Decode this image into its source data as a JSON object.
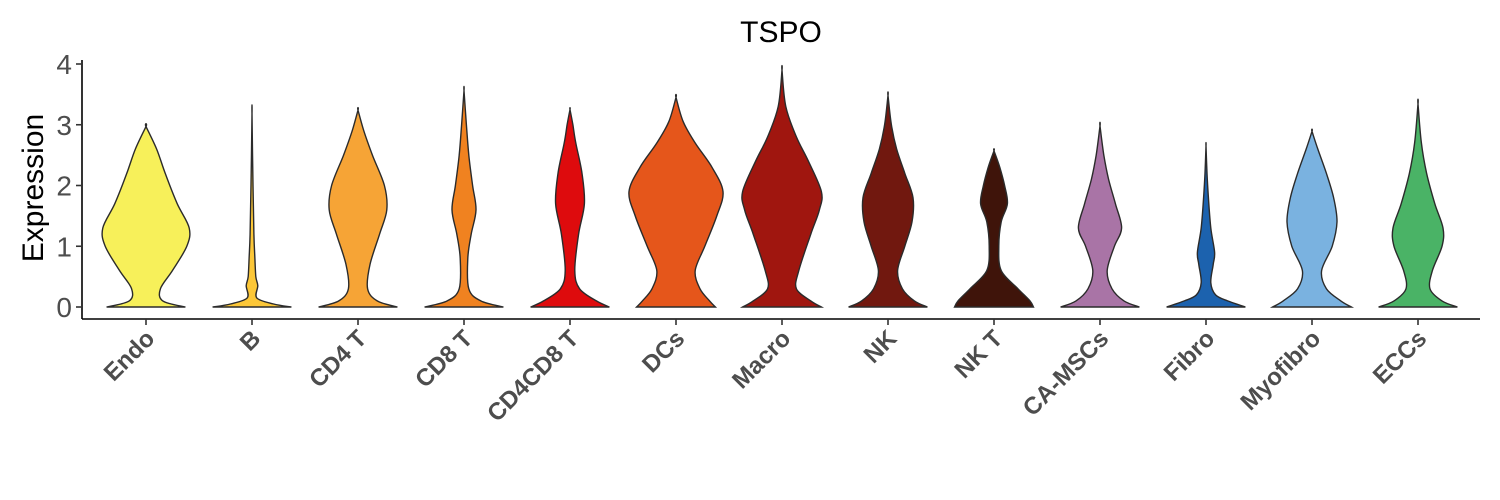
{
  "chart_data": {
    "type": "violin",
    "title": "TSPO",
    "ylabel": "Expression",
    "xlabel": "",
    "ylim": [
      -0.2,
      4.05
    ],
    "yticks": [
      0,
      1,
      2,
      3,
      4
    ],
    "grid": false,
    "legend": "none",
    "categories": [
      "Endo",
      "B",
      "CD4 T",
      "CD8 T",
      "CD4CD8 T",
      "DCs",
      "Macro",
      "NK",
      "NK T",
      "CA-MSCs",
      "Fibro",
      "Myofibro",
      "ECCs"
    ],
    "colors": [
      "#F7F05A",
      "#FCC738",
      "#F6A436",
      "#F08220",
      "#DE0B0D",
      "#E5561B",
      "#A0160F",
      "#71180F",
      "#3F140A",
      "#A974A6",
      "#1C62AE",
      "#7AB2E0",
      "#4AB366"
    ],
    "max_values": [
      2.97,
      3.18,
      3.24,
      3.56,
      3.25,
      3.45,
      3.9,
      3.48,
      2.57,
      2.98,
      2.65,
      2.89,
      3.34
    ],
    "violins": [
      {
        "name": "Endo",
        "density": [
          [
            0,
            0.82
          ],
          [
            0.1,
            0.35
          ],
          [
            0.3,
            0.3
          ],
          [
            0.6,
            0.55
          ],
          [
            1.0,
            0.85
          ],
          [
            1.3,
            0.9
          ],
          [
            1.7,
            0.65
          ],
          [
            2.2,
            0.4
          ],
          [
            2.6,
            0.22
          ],
          [
            2.97,
            0
          ]
        ]
      },
      {
        "name": "B",
        "density": [
          [
            0,
            0.82
          ],
          [
            0.05,
            0.45
          ],
          [
            0.15,
            0.1
          ],
          [
            0.35,
            0.12
          ],
          [
            0.5,
            0.08
          ],
          [
            0.8,
            0.06
          ],
          [
            1.2,
            0.04
          ],
          [
            2.0,
            0.02
          ],
          [
            3.18,
            0
          ]
        ]
      },
      {
        "name": "CD4 T",
        "density": [
          [
            0,
            0.82
          ],
          [
            0.1,
            0.4
          ],
          [
            0.3,
            0.2
          ],
          [
            0.7,
            0.25
          ],
          [
            1.2,
            0.45
          ],
          [
            1.6,
            0.6
          ],
          [
            2.0,
            0.55
          ],
          [
            2.5,
            0.3
          ],
          [
            2.9,
            0.12
          ],
          [
            3.24,
            0
          ]
        ]
      },
      {
        "name": "CD8 T",
        "density": [
          [
            0,
            0.82
          ],
          [
            0.1,
            0.35
          ],
          [
            0.3,
            0.1
          ],
          [
            0.8,
            0.08
          ],
          [
            1.2,
            0.15
          ],
          [
            1.6,
            0.25
          ],
          [
            2.0,
            0.18
          ],
          [
            2.5,
            0.1
          ],
          [
            3.0,
            0.05
          ],
          [
            3.56,
            0
          ]
        ]
      },
      {
        "name": "CD4CD8 T",
        "density": [
          [
            0,
            0.82
          ],
          [
            0.1,
            0.55
          ],
          [
            0.3,
            0.2
          ],
          [
            0.6,
            0.1
          ],
          [
            1.2,
            0.18
          ],
          [
            1.7,
            0.3
          ],
          [
            2.2,
            0.25
          ],
          [
            2.7,
            0.12
          ],
          [
            3.0,
            0.06
          ],
          [
            3.25,
            0
          ]
        ]
      },
      {
        "name": "DCs",
        "density": [
          [
            0,
            0.82
          ],
          [
            0.1,
            0.7
          ],
          [
            0.3,
            0.5
          ],
          [
            0.6,
            0.4
          ],
          [
            1.0,
            0.6
          ],
          [
            1.5,
            0.85
          ],
          [
            1.9,
            0.98
          ],
          [
            2.3,
            0.75
          ],
          [
            2.7,
            0.4
          ],
          [
            3.05,
            0.15
          ],
          [
            3.45,
            0
          ]
        ]
      },
      {
        "name": "Macro",
        "density": [
          [
            0,
            0.82
          ],
          [
            0.1,
            0.6
          ],
          [
            0.3,
            0.3
          ],
          [
            0.6,
            0.35
          ],
          [
            1.2,
            0.6
          ],
          [
            1.6,
            0.78
          ],
          [
            1.9,
            0.82
          ],
          [
            2.4,
            0.55
          ],
          [
            2.8,
            0.3
          ],
          [
            3.3,
            0.08
          ],
          [
            3.9,
            0
          ]
        ]
      },
      {
        "name": "NK",
        "density": [
          [
            0,
            0.82
          ],
          [
            0.1,
            0.55
          ],
          [
            0.3,
            0.3
          ],
          [
            0.6,
            0.2
          ],
          [
            1.0,
            0.35
          ],
          [
            1.4,
            0.5
          ],
          [
            1.8,
            0.52
          ],
          [
            2.2,
            0.35
          ],
          [
            2.6,
            0.18
          ],
          [
            3.0,
            0.07
          ],
          [
            3.48,
            0
          ]
        ]
      },
      {
        "name": "NK T",
        "density": [
          [
            0,
            0.82
          ],
          [
            0.1,
            0.75
          ],
          [
            0.3,
            0.5
          ],
          [
            0.6,
            0.15
          ],
          [
            1.0,
            0.1
          ],
          [
            1.4,
            0.15
          ],
          [
            1.7,
            0.28
          ],
          [
            2.0,
            0.22
          ],
          [
            2.3,
            0.12
          ],
          [
            2.57,
            0
          ]
        ]
      },
      {
        "name": "CA-MSCs",
        "density": [
          [
            0,
            0.82
          ],
          [
            0.1,
            0.5
          ],
          [
            0.3,
            0.25
          ],
          [
            0.6,
            0.15
          ],
          [
            1.0,
            0.3
          ],
          [
            1.3,
            0.45
          ],
          [
            1.7,
            0.32
          ],
          [
            2.1,
            0.18
          ],
          [
            2.5,
            0.08
          ],
          [
            2.98,
            0
          ]
        ]
      },
      {
        "name": "Fibro",
        "density": [
          [
            0,
            0.82
          ],
          [
            0.1,
            0.45
          ],
          [
            0.2,
            0.2
          ],
          [
            0.4,
            0.1
          ],
          [
            0.7,
            0.15
          ],
          [
            0.9,
            0.18
          ],
          [
            1.3,
            0.1
          ],
          [
            1.8,
            0.05
          ],
          [
            2.2,
            0.02
          ],
          [
            2.65,
            0
          ]
        ]
      },
      {
        "name": "Myofibro",
        "density": [
          [
            0,
            0.82
          ],
          [
            0.1,
            0.6
          ],
          [
            0.3,
            0.3
          ],
          [
            0.6,
            0.2
          ],
          [
            1.0,
            0.42
          ],
          [
            1.4,
            0.52
          ],
          [
            1.8,
            0.45
          ],
          [
            2.2,
            0.3
          ],
          [
            2.6,
            0.12
          ],
          [
            2.89,
            0
          ]
        ]
      },
      {
        "name": "ECCs",
        "density": [
          [
            0,
            0.82
          ],
          [
            0.1,
            0.5
          ],
          [
            0.3,
            0.25
          ],
          [
            0.6,
            0.3
          ],
          [
            1.0,
            0.5
          ],
          [
            1.3,
            0.52
          ],
          [
            1.7,
            0.35
          ],
          [
            2.2,
            0.18
          ],
          [
            2.7,
            0.07
          ],
          [
            3.34,
            0
          ]
        ]
      }
    ]
  }
}
